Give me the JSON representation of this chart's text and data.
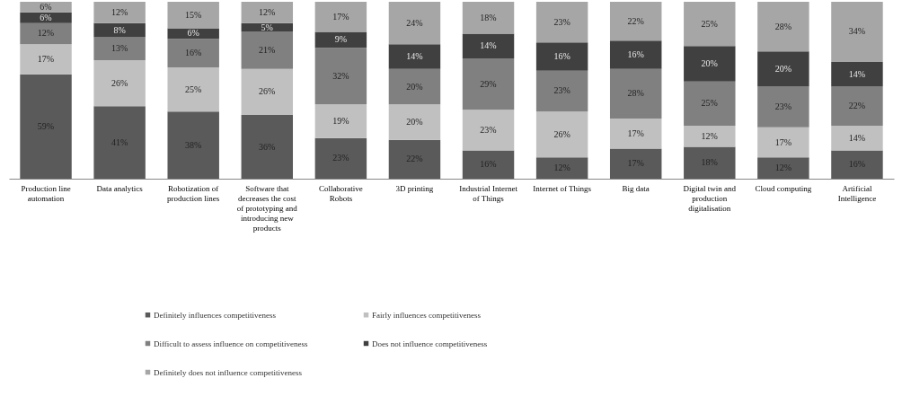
{
  "chart_data": {
    "type": "bar",
    "stacked": true,
    "legend": "bottom",
    "ylim": [
      0,
      100
    ],
    "tick_labels": "x",
    "categories": [
      "Production line automation",
      "Data analytics",
      "Robotization of production lines",
      "Software that decreases the cost of prototyping and introducing new products",
      "Collaborative Robots",
      "3D printing",
      "Industrial Internet of Things",
      "Internet of Things",
      "Big data",
      "Digital twin and production digitalisation",
      "Cloud computing",
      "Artificial Intelligence"
    ],
    "series": [
      {
        "name": "Definitely influences competitiveness",
        "color": "#5a5a5a",
        "values": [
          59,
          41,
          38,
          36,
          23,
          22,
          16,
          12,
          17,
          18,
          12,
          16
        ],
        "value_labels": [
          "59%",
          "41%",
          "38%",
          "36%",
          "23%",
          "22%",
          "16%",
          "12%",
          "17%",
          "18%",
          "12%",
          "16%"
        ]
      },
      {
        "name": "Fairly influences competitiveness",
        "color": "#c0c0c0",
        "values": [
          17,
          26,
          25,
          26,
          19,
          20,
          23,
          26,
          17,
          12,
          17,
          14
        ],
        "value_labels": [
          "17%",
          "26%",
          "25%",
          "26%",
          "19%",
          "20%",
          "23%",
          "26%",
          "17%",
          "12%",
          "17%",
          "14%"
        ]
      },
      {
        "name": "Difficult to assess influence on competitiveness",
        "color": "#808080",
        "values": [
          12,
          13,
          16,
          21,
          32,
          20,
          29,
          23,
          28,
          25,
          23,
          22
        ],
        "value_labels": [
          "12%",
          "13%",
          "16%",
          "21%",
          "32%",
          "20%",
          "29%",
          "23%",
          "28%",
          "25%",
          "23%",
          "22%"
        ]
      },
      {
        "name": "Does not influence competitiveness",
        "color": "#404040",
        "values": [
          6,
          8,
          6,
          5,
          9,
          14,
          14,
          16,
          16,
          20,
          20,
          14
        ],
        "value_labels": [
          "6%",
          "8%",
          "6%",
          "5%",
          "9%",
          "14%",
          "14%",
          "16%",
          "16%",
          "20%",
          "20%",
          "14%"
        ]
      },
      {
        "name": "Definitely does not influence competitiveness",
        "color": "#a6a6a6",
        "values": [
          6,
          12,
          15,
          12,
          17,
          24,
          18,
          23,
          22,
          25,
          28,
          34
        ],
        "value_labels": [
          "6%",
          "12%",
          "15%",
          "12%",
          "17%",
          "24%",
          "18%",
          "23%",
          "22%",
          "25%",
          "28%",
          "34%"
        ]
      }
    ]
  }
}
